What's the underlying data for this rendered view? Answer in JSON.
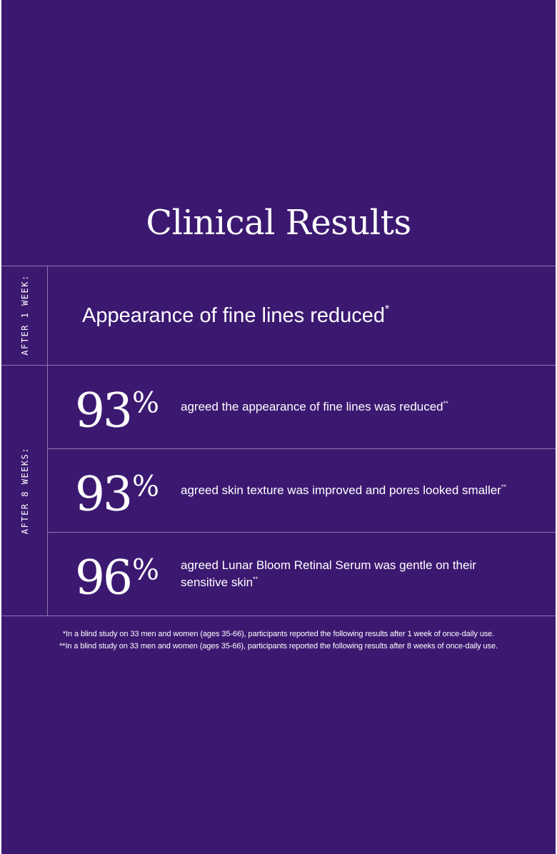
{
  "page": {
    "title": "Clinical Results",
    "background_color": "#3c1971",
    "line_color": "#8c76b3",
    "text_color": "#ffffff"
  },
  "week1": {
    "label": "AFTER 1 WEEK:",
    "text": "Appearance of fine lines reduced",
    "marker": "*"
  },
  "week8": {
    "label": "AFTER 8 WEEKS:",
    "stats": [
      {
        "value": "93",
        "unit": "%",
        "text": "agreed the appearance of fine lines was reduced",
        "marker": "**"
      },
      {
        "value": "93",
        "unit": "%",
        "text": "agreed skin texture was improved and pores looked smaller",
        "marker": "**"
      },
      {
        "value": "96",
        "unit": "%",
        "text": "agreed Lunar Bloom Retinal Serum was gentle on their sensitive skin",
        "marker": "**"
      }
    ]
  },
  "footnotes": [
    "*In a blind study on 33 men and women (ages 35-66), participants reported the following results after 1 week of once-daily use.",
    "**In a blind study on 33 men and women (ages 35-66), participants reported the following results after 8 weeks of once-daily use."
  ]
}
